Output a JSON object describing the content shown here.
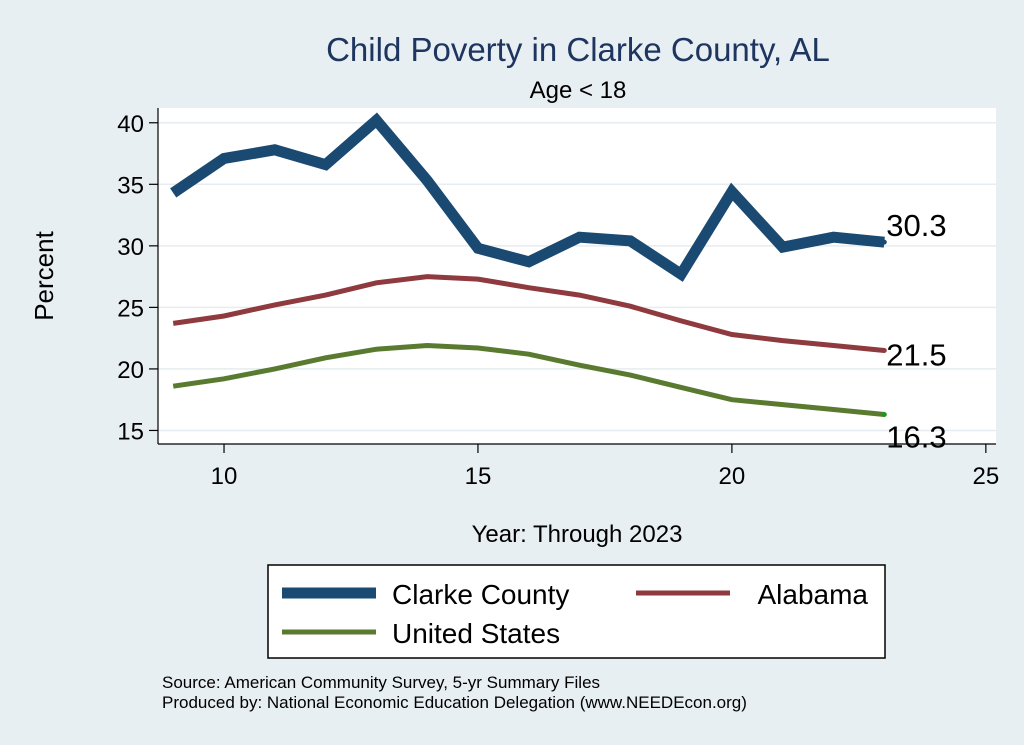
{
  "chart_data": {
    "type": "line",
    "title": "Child Poverty in Clarke County, AL",
    "subtitle": "Age < 18",
    "xlabel": "Year: Through 2023",
    "ylabel": "Percent",
    "xlim": [
      8.7,
      25.2
    ],
    "ylim": [
      13.9,
      41.2
    ],
    "xticks": [
      10,
      15,
      20,
      25
    ],
    "yticks": [
      15,
      20,
      25,
      30,
      35,
      40
    ],
    "grid": true,
    "legend_position": "bottom",
    "series": [
      {
        "name": "Clarke County",
        "color": "#1a4a72",
        "x": [
          9,
          10,
          11,
          12,
          13,
          14,
          15,
          16,
          17,
          18,
          19,
          20,
          21,
          22,
          23
        ],
        "values": [
          34.3,
          37.1,
          37.8,
          36.6,
          40.2,
          35.3,
          29.8,
          28.7,
          30.7,
          30.4,
          27.7,
          34.4,
          29.9,
          30.7,
          30.3
        ],
        "end_label": "30.3"
      },
      {
        "name": "Alabama",
        "color": "#8e3a3f",
        "x": [
          9,
          10,
          11,
          12,
          13,
          14,
          15,
          16,
          17,
          18,
          19,
          20,
          21,
          22,
          23
        ],
        "values": [
          23.7,
          24.3,
          25.2,
          26.0,
          27.0,
          27.5,
          27.3,
          26.6,
          26.0,
          25.1,
          23.9,
          22.8,
          22.3,
          21.9,
          21.5
        ],
        "end_label": "21.5"
      },
      {
        "name": "United States",
        "color": "#5a7a30",
        "x": [
          9,
          10,
          11,
          12,
          13,
          14,
          15,
          16,
          17,
          18,
          19,
          20,
          21,
          22,
          23
        ],
        "values": [
          18.6,
          19.2,
          20.0,
          20.9,
          21.6,
          21.9,
          21.7,
          21.2,
          20.3,
          19.5,
          18.5,
          17.5,
          17.1,
          16.7,
          16.3
        ],
        "end_label": "16.3"
      }
    ],
    "notes": [
      "Source: American Community Survey, 5-yr Summary Files",
      "Produced by: National Economic Education Delegation (www.NEEDEcon.org)"
    ]
  }
}
